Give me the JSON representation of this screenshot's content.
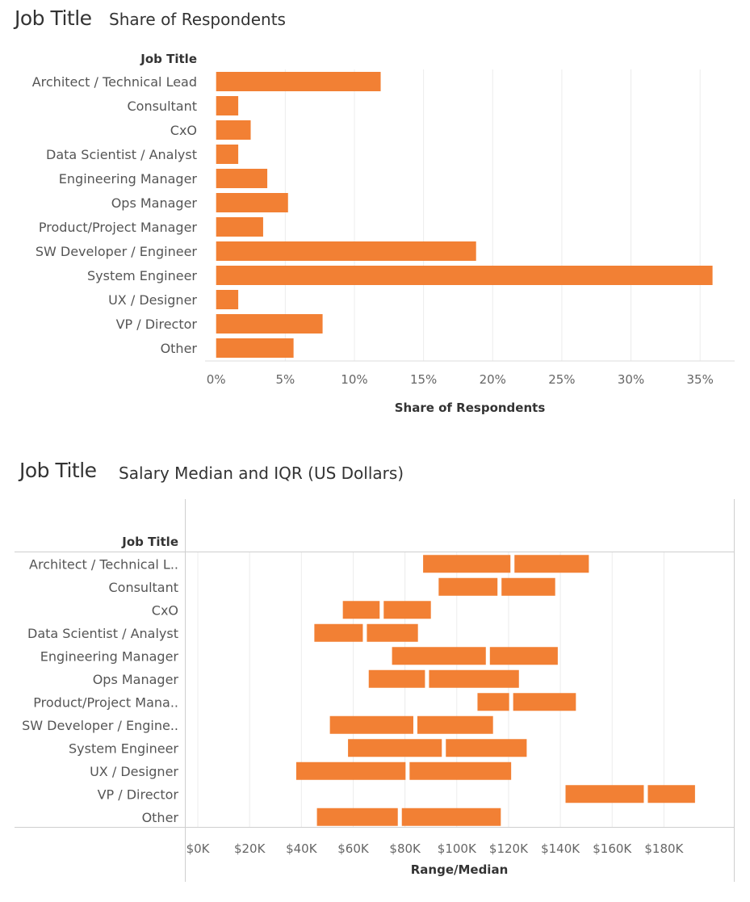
{
  "chart_data": [
    {
      "type": "bar",
      "orientation": "horizontal",
      "title": "Job Title",
      "subtitle": "Share of Respondents",
      "category_header": "Job Title",
      "xlabel": "Share of Respondents",
      "categories": [
        "Architect / Technical Lead",
        "Consultant",
        "CxO",
        "Data Scientist / Analyst",
        "Engineering Manager",
        "Ops Manager",
        "Product/Project Manager",
        "SW Developer / Engineer",
        "System Engineer",
        "UX / Designer",
        "VP / Director",
        "Other"
      ],
      "values": [
        11.9,
        1.6,
        2.5,
        1.6,
        3.7,
        5.2,
        3.4,
        18.8,
        35.9,
        1.6,
        7.7,
        5.6
      ],
      "xlim": [
        -0.8,
        37.5
      ],
      "ticks": [
        0,
        5,
        10,
        15,
        20,
        25,
        30,
        35
      ],
      "tick_labels": [
        "0%",
        "5%",
        "10%",
        "15%",
        "20%",
        "25%",
        "30%",
        "35%"
      ],
      "color": "#f28034",
      "grid": true
    },
    {
      "type": "range-bar",
      "orientation": "horizontal",
      "title": "Job Title",
      "subtitle": "Salary Median and IQR (US Dollars)",
      "category_header": "Job Title",
      "xlabel": "Range/Median",
      "categories": [
        "Architect / Technical L..",
        "Consultant",
        "CxO",
        "Data Scientist / Analyst",
        "Engineering Manager",
        "Ops Manager",
        "Product/Project Mana..",
        "SW Developer / Engine..",
        "System Engineer",
        "UX / Designer",
        "VP / Director",
        "Other"
      ],
      "series": [
        {
          "name": "Q1",
          "values": [
            87000,
            93000,
            56000,
            45000,
            75000,
            66000,
            108000,
            51000,
            58000,
            38000,
            142000,
            46000
          ]
        },
        {
          "name": "Median",
          "values": [
            121500,
            116500,
            71000,
            64500,
            112000,
            88500,
            121000,
            84000,
            95000,
            81000,
            173000,
            78000
          ]
        },
        {
          "name": "Q3",
          "values": [
            151000,
            138000,
            90000,
            85000,
            139000,
            124000,
            146000,
            114000,
            127000,
            121000,
            192000,
            117000
          ]
        }
      ],
      "xlim": [
        -5000,
        207000
      ],
      "ticks": [
        0,
        20000,
        40000,
        60000,
        80000,
        100000,
        120000,
        140000,
        160000,
        180000
      ],
      "tick_labels": [
        "$0K",
        "$20K",
        "$40K",
        "$60K",
        "$80K",
        "$100K",
        "$120K",
        "$140K",
        "$160K",
        "$180K"
      ],
      "color": "#f28034",
      "grid": true
    }
  ]
}
